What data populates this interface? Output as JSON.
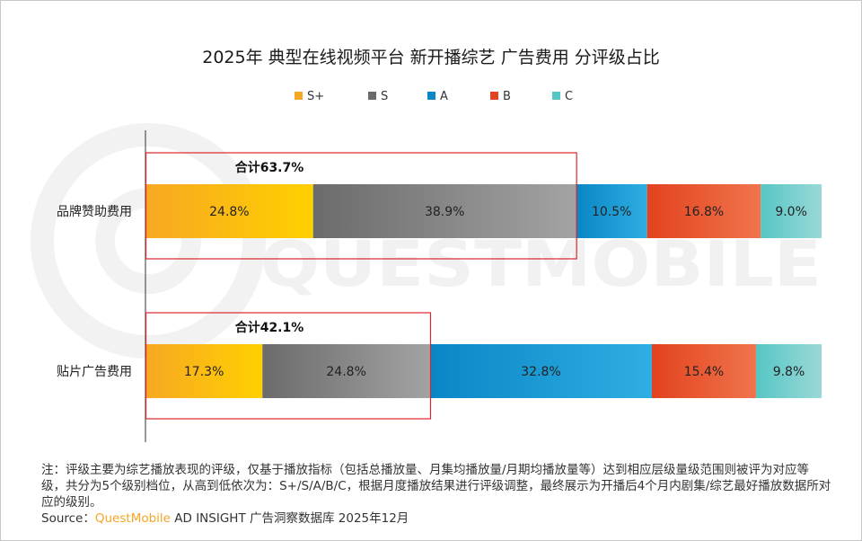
{
  "chart_data": {
    "type": "bar",
    "orientation": "horizontal",
    "stacked": true,
    "title": "2025年 典型在线视频平台 新开播综艺 广告费用 分评级占比",
    "categories": [
      "品牌赞助费用",
      "贴片广告费用"
    ],
    "series": [
      {
        "name": "S+",
        "values": [
          24.8,
          17.3
        ],
        "labels": [
          "24.8%",
          "17.3%"
        ]
      },
      {
        "name": "S",
        "values": [
          38.9,
          24.8
        ],
        "labels": [
          "38.9%",
          "24.8%"
        ]
      },
      {
        "name": "A",
        "values": [
          10.5,
          32.8
        ],
        "labels": [
          "10.5%",
          "32.8%"
        ]
      },
      {
        "name": "B",
        "values": [
          16.8,
          15.4
        ],
        "labels": [
          "16.8%",
          "15.4%"
        ]
      },
      {
        "name": "C",
        "values": [
          9.0,
          9.8
        ],
        "labels": [
          "9.0%",
          "9.8%"
        ]
      }
    ],
    "totals": [
      {
        "label": "合计63.7%",
        "value": 63.7
      },
      {
        "label": "合计42.1%",
        "value": 42.1
      }
    ],
    "xlim": [
      0,
      100
    ],
    "legend_position": "top-center",
    "grid": false
  },
  "colors": {
    "S+": [
      "#f7a823",
      "#ffd000"
    ],
    "S": [
      "#6b6b6b",
      "#a3a3a3"
    ],
    "A": [
      "#0a86c6",
      "#2eaee2"
    ],
    "B": [
      "#e2431e",
      "#f0744c"
    ],
    "C": [
      "#56c6c4",
      "#9ad9d8"
    ],
    "highlight": "#d9262c"
  },
  "watermark": "QUESTMOBILE",
  "note": "注：评级主要为综艺播放表现的评级，仅基于播放指标（包括总播放量、月集均播放量/月期均播放量等）达到相应层级量级范围则被评为对应等级，共分为5个级别档位，从高到低依次为：S+/S/A/B/C，根据月度播放结果进行评级调整，最终展示为开播后4个月内剧集/综艺最好播放数据所对应的级别。",
  "source": {
    "prefix": "Source：",
    "brand": "QuestMobile",
    "rest": " AD INSIGHT 广告洞察数据库 2025年12月"
  }
}
